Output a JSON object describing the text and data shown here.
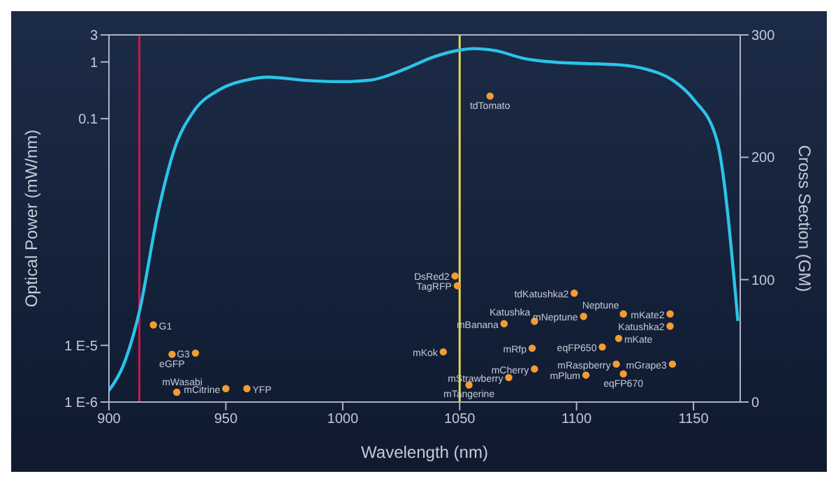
{
  "chart_data": {
    "type": "line",
    "xlabel": "Wavelength (nm)",
    "ylabel": "Optical Power (mW/nm)",
    "y2label": "Cross Section (GM)",
    "xlim": [
      900,
      1170
    ],
    "xticks": [
      900,
      950,
      1000,
      1050,
      1100,
      1150
    ],
    "ylim": [
      1e-06,
      3
    ],
    "yticks": [
      {
        "value": 1e-06,
        "label": "1 E-6"
      },
      {
        "value": 1e-05,
        "label": "1 E-5"
      },
      0.1,
      1,
      3
    ],
    "y2lim": [
      0,
      300
    ],
    "y2ticks": [
      0,
      100,
      200,
      300
    ],
    "log": "y",
    "grid": false,
    "legend": false,
    "ref_lines": [
      {
        "axis": "x",
        "value": 913,
        "color": "#c8194b"
      },
      {
        "axis": "x",
        "value": 1050,
        "color": "#e6d84a"
      }
    ],
    "series": [
      {
        "color": "#2bc4e8",
        "marker": "none",
        "x": [
          900,
          906,
          913,
          921,
          928,
          936,
          947,
          959,
          968,
          985,
          1000,
          1012,
          1027,
          1038,
          1050,
          1056,
          1065,
          1078,
          1092,
          1103,
          1118,
          1130,
          1141,
          1150,
          1160,
          1169
        ],
        "values": [
          1.6e-06,
          4.3e-06,
          3.9e-05,
          0.0022,
          0.029,
          0.13,
          0.32,
          0.48,
          0.54,
          0.47,
          0.45,
          0.48,
          0.76,
          1.19,
          1.62,
          1.72,
          1.59,
          1.14,
          0.98,
          0.94,
          0.89,
          0.74,
          0.48,
          0.22,
          0.042,
          2.7e-05
        ]
      },
      {
        "type": "scatter",
        "axis": "y2",
        "color": "#f39c34",
        "marker": "circle",
        "x": [
          919,
          927,
          937,
          929,
          950,
          959,
          1043,
          1048,
          1049,
          1063,
          1054,
          1069,
          1071,
          1082,
          1081,
          1082,
          1099,
          1103,
          1104,
          1111,
          1117,
          1118,
          1120,
          1120,
          1140,
          1140,
          1141
        ],
        "values": [
          63,
          39,
          40,
          8,
          11,
          11,
          41,
          103,
          95,
          250,
          14,
          64,
          20,
          66,
          44,
          27,
          89,
          70,
          22,
          45,
          31,
          52,
          72,
          23,
          62,
          72,
          31
        ],
        "value_labels": [
          "G1",
          "eGFP",
          "G3",
          "mWasabi",
          "mCitrine",
          "YFP",
          "mKok",
          "DsRed2",
          "TagRFP",
          "tdTomato",
          "mTangerine",
          "mBanana",
          "mStrawberry",
          "Katushka",
          "mRfp",
          "mCherry",
          "tdKatushka2",
          "mNeptune",
          "mPlum",
          "eqFP650",
          "mRaspberry",
          "mKate",
          "Neptune",
          "eqFP670",
          "Katushka2",
          "mKate2",
          "mGrape3"
        ]
      }
    ]
  }
}
